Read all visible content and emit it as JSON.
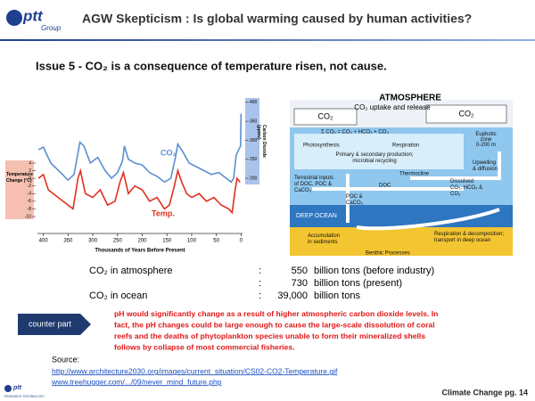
{
  "header": {
    "logo": "ptt",
    "logo_sub": "Group",
    "title": "AGW Skepticism : Is global warming caused by human activities?"
  },
  "subtitle": "Issue 5 - CO₂ is a consequence of temperature risen, not cause.",
  "figure_left": {
    "type": "line",
    "xlabel": "Thousands of Years Before Present",
    "ylabel": [
      "Temperature",
      "Change (°C)"
    ],
    "y2label": [
      "Carbon Dioxide",
      "(ppmv)"
    ],
    "xlim": [
      412,
      -3
    ],
    "xticks": [
      400,
      350,
      300,
      250,
      200,
      150,
      100,
      50,
      0
    ],
    "ylim": [
      -13.5,
      21.5
    ],
    "yticks": [
      4,
      2,
      0,
      -2,
      -4,
      -6,
      -8,
      -10
    ],
    "y2lim": [
      64,
      416
    ],
    "y2ticks": [
      400,
      350,
      300,
      250,
      200
    ],
    "series": [
      {
        "name": "CO₂",
        "color": "#5b8fd0",
        "axis": "y2",
        "x": [
          410,
          400,
          385,
          365,
          350,
          338,
          326,
          318,
          305,
          290,
          275,
          262,
          250,
          240,
          236,
          228,
          215,
          200,
          185,
          170,
          155,
          142,
          132,
          128,
          118,
          105,
          90,
          75,
          60,
          45,
          30,
          20,
          15,
          10,
          5,
          1,
          0
        ],
        "values": [
          275,
          282,
          240,
          215,
          195,
          210,
          295,
          285,
          240,
          255,
          220,
          200,
          215,
          245,
          285,
          250,
          240,
          235,
          215,
          205,
          190,
          200,
          260,
          290,
          270,
          240,
          230,
          220,
          210,
          215,
          200,
          190,
          200,
          260,
          275,
          285,
          370
        ]
      },
      {
        "name": "Temp.",
        "color": "#e03020",
        "x": [
          410,
          400,
          390,
          370,
          350,
          340,
          330,
          325,
          315,
          300,
          285,
          270,
          255,
          245,
          238,
          228,
          215,
          200,
          185,
          170,
          155,
          145,
          135,
          128,
          120,
          110,
          100,
          85,
          70,
          55,
          40,
          25,
          18,
          12,
          8,
          2
        ],
        "values": [
          0,
          1,
          -3,
          -5,
          -7,
          -8,
          0,
          2,
          -4,
          -5,
          -3,
          -7,
          -6,
          -1,
          1.5,
          -4,
          -2,
          -3,
          -6,
          -5,
          -8,
          -7,
          -2,
          2,
          -1,
          -4,
          -5,
          -4,
          -6,
          -5,
          -7,
          -8,
          -9,
          -3,
          0,
          -1
        ]
      }
    ]
  },
  "diagram": {
    "title": "ATMOSPHERE",
    "subtitle": "CO₂ uptake and release",
    "box_left": "CO₂",
    "box_right": "CO₂",
    "formula": "Σ CO₂ = CO₂ + HCO₃ + CO₃",
    "euphotic": [
      "Euphotic",
      "zone",
      "0-200 m"
    ],
    "photosynthesis": "Photosynthesis",
    "respiration": "Respiration",
    "production": [
      "Primary & secondary production;",
      "microbial recycling"
    ],
    "thermocline": "Thermocline",
    "upwelling": [
      "Upwelling",
      "& diffusion"
    ],
    "terrestrial": [
      "Terrestrial inputs",
      "of DOC, POC &",
      "CaCO₃"
    ],
    "doc": "DOC",
    "dissolved": [
      "Dissolved",
      "CO₂, HCO₃ &",
      "CO₃"
    ],
    "poc": [
      "POC &",
      "CaCO₃"
    ],
    "deep_ocean": "DEEP OCEAN",
    "accumulation": [
      "Accumulation",
      "in sediments"
    ],
    "decomposition": [
      "Respiration & decomposition;",
      "transport in deep ocean"
    ],
    "benthic": "Benthic Processes"
  },
  "table": {
    "rows": [
      {
        "label": "CO₂ in atmosphere",
        "sep": ":",
        "amount": "550",
        "unit": "billion tons (before industry)"
      },
      {
        "sep": ":",
        "amount": "730",
        "unit": "billion tons (present)"
      },
      {
        "label": "CO₂ in ocean",
        "sep": ":",
        "amount": "39,000",
        "unit": "billion tons"
      }
    ]
  },
  "counter": {
    "button": "counter part",
    "text": [
      "pH would significantly change as a result of higher atmospheric carbon dioxide levels. In",
      "fact, the pH changes could be large enough to cause the large-scale dissolution of coral",
      "reefs and the deaths of phytoplankton species unable to form their mineralized shells",
      "follows by collapse of most commercial fisheries."
    ]
  },
  "source": {
    "label": "Source:",
    "links": [
      "http://www.architecture2030.org/images/current_situation/CS02-CO2-Temperature.gif",
      "www.treehugger.com/.../09/never_mind_future.php"
    ]
  },
  "footer": {
    "logo": "ptt",
    "logo_sub": "RESEARCH TECHNOLOGY",
    "page": "Climate Change pg. 14"
  }
}
